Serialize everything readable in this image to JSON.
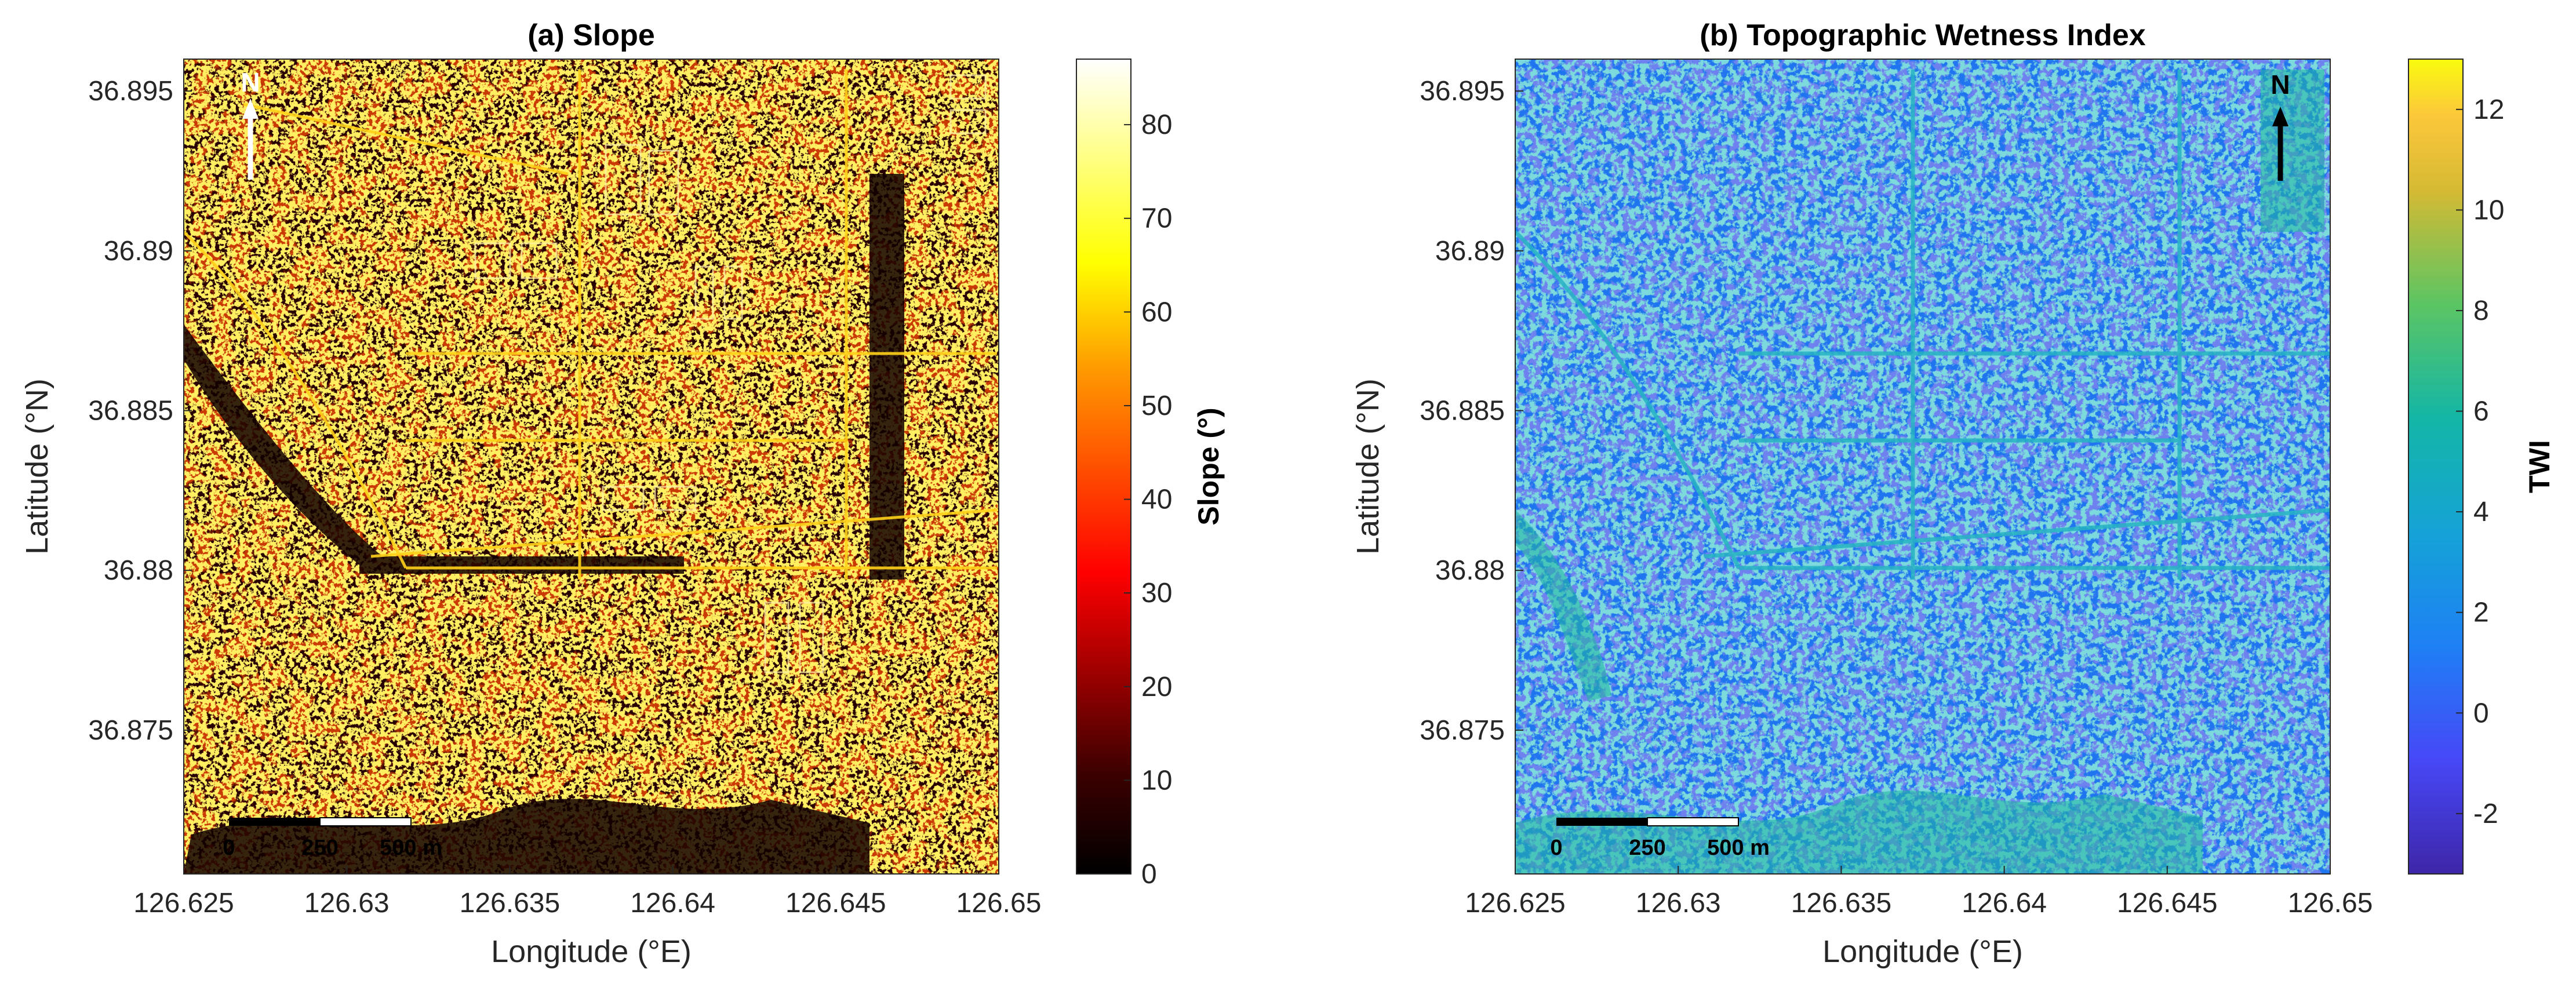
{
  "panels": [
    {
      "id": "slope",
      "title": "(a) Slope",
      "xlabel": "Longitude (°E)",
      "ylabel": "Latitude (°N)",
      "xticks": [
        "126.625",
        "126.63",
        "126.635",
        "126.64",
        "126.645",
        "126.65"
      ],
      "yticks": [
        "36.895",
        "36.89",
        "36.885",
        "36.88",
        "36.875"
      ],
      "xlim": [
        126.625,
        126.65
      ],
      "ylim": [
        36.8705,
        36.896
      ],
      "colormap": "hot",
      "colorbar": {
        "label": "Slope (°)",
        "ticks": [
          "0",
          "10",
          "20",
          "30",
          "40",
          "50",
          "60",
          "70",
          "80"
        ],
        "range": [
          0,
          87
        ]
      },
      "north_arrow": {
        "label": "N",
        "color": "#ffffff"
      },
      "scale_bar": {
        "labels": [
          "0",
          "250",
          "500 m"
        ]
      }
    },
    {
      "id": "twi",
      "title": "(b) Topographic Wetness Index",
      "xlabel": "Longitude (°E)",
      "ylabel": "Latitude (°N)",
      "xticks": [
        "126.625",
        "126.63",
        "126.635",
        "126.64",
        "126.645",
        "126.65"
      ],
      "yticks": [
        "36.895",
        "36.89",
        "36.885",
        "36.88",
        "36.875"
      ],
      "xlim": [
        126.625,
        126.65
      ],
      "ylim": [
        36.8705,
        36.896
      ],
      "colormap": "parula",
      "colorbar": {
        "label": "TWI",
        "ticks": [
          "-2",
          "0",
          "2",
          "4",
          "6",
          "8",
          "10",
          "12"
        ],
        "range": [
          -3.2,
          13
        ]
      },
      "north_arrow": {
        "label": "N",
        "color": "#000000"
      },
      "scale_bar": {
        "labels": [
          "0",
          "250",
          "500 m"
        ]
      }
    }
  ]
}
